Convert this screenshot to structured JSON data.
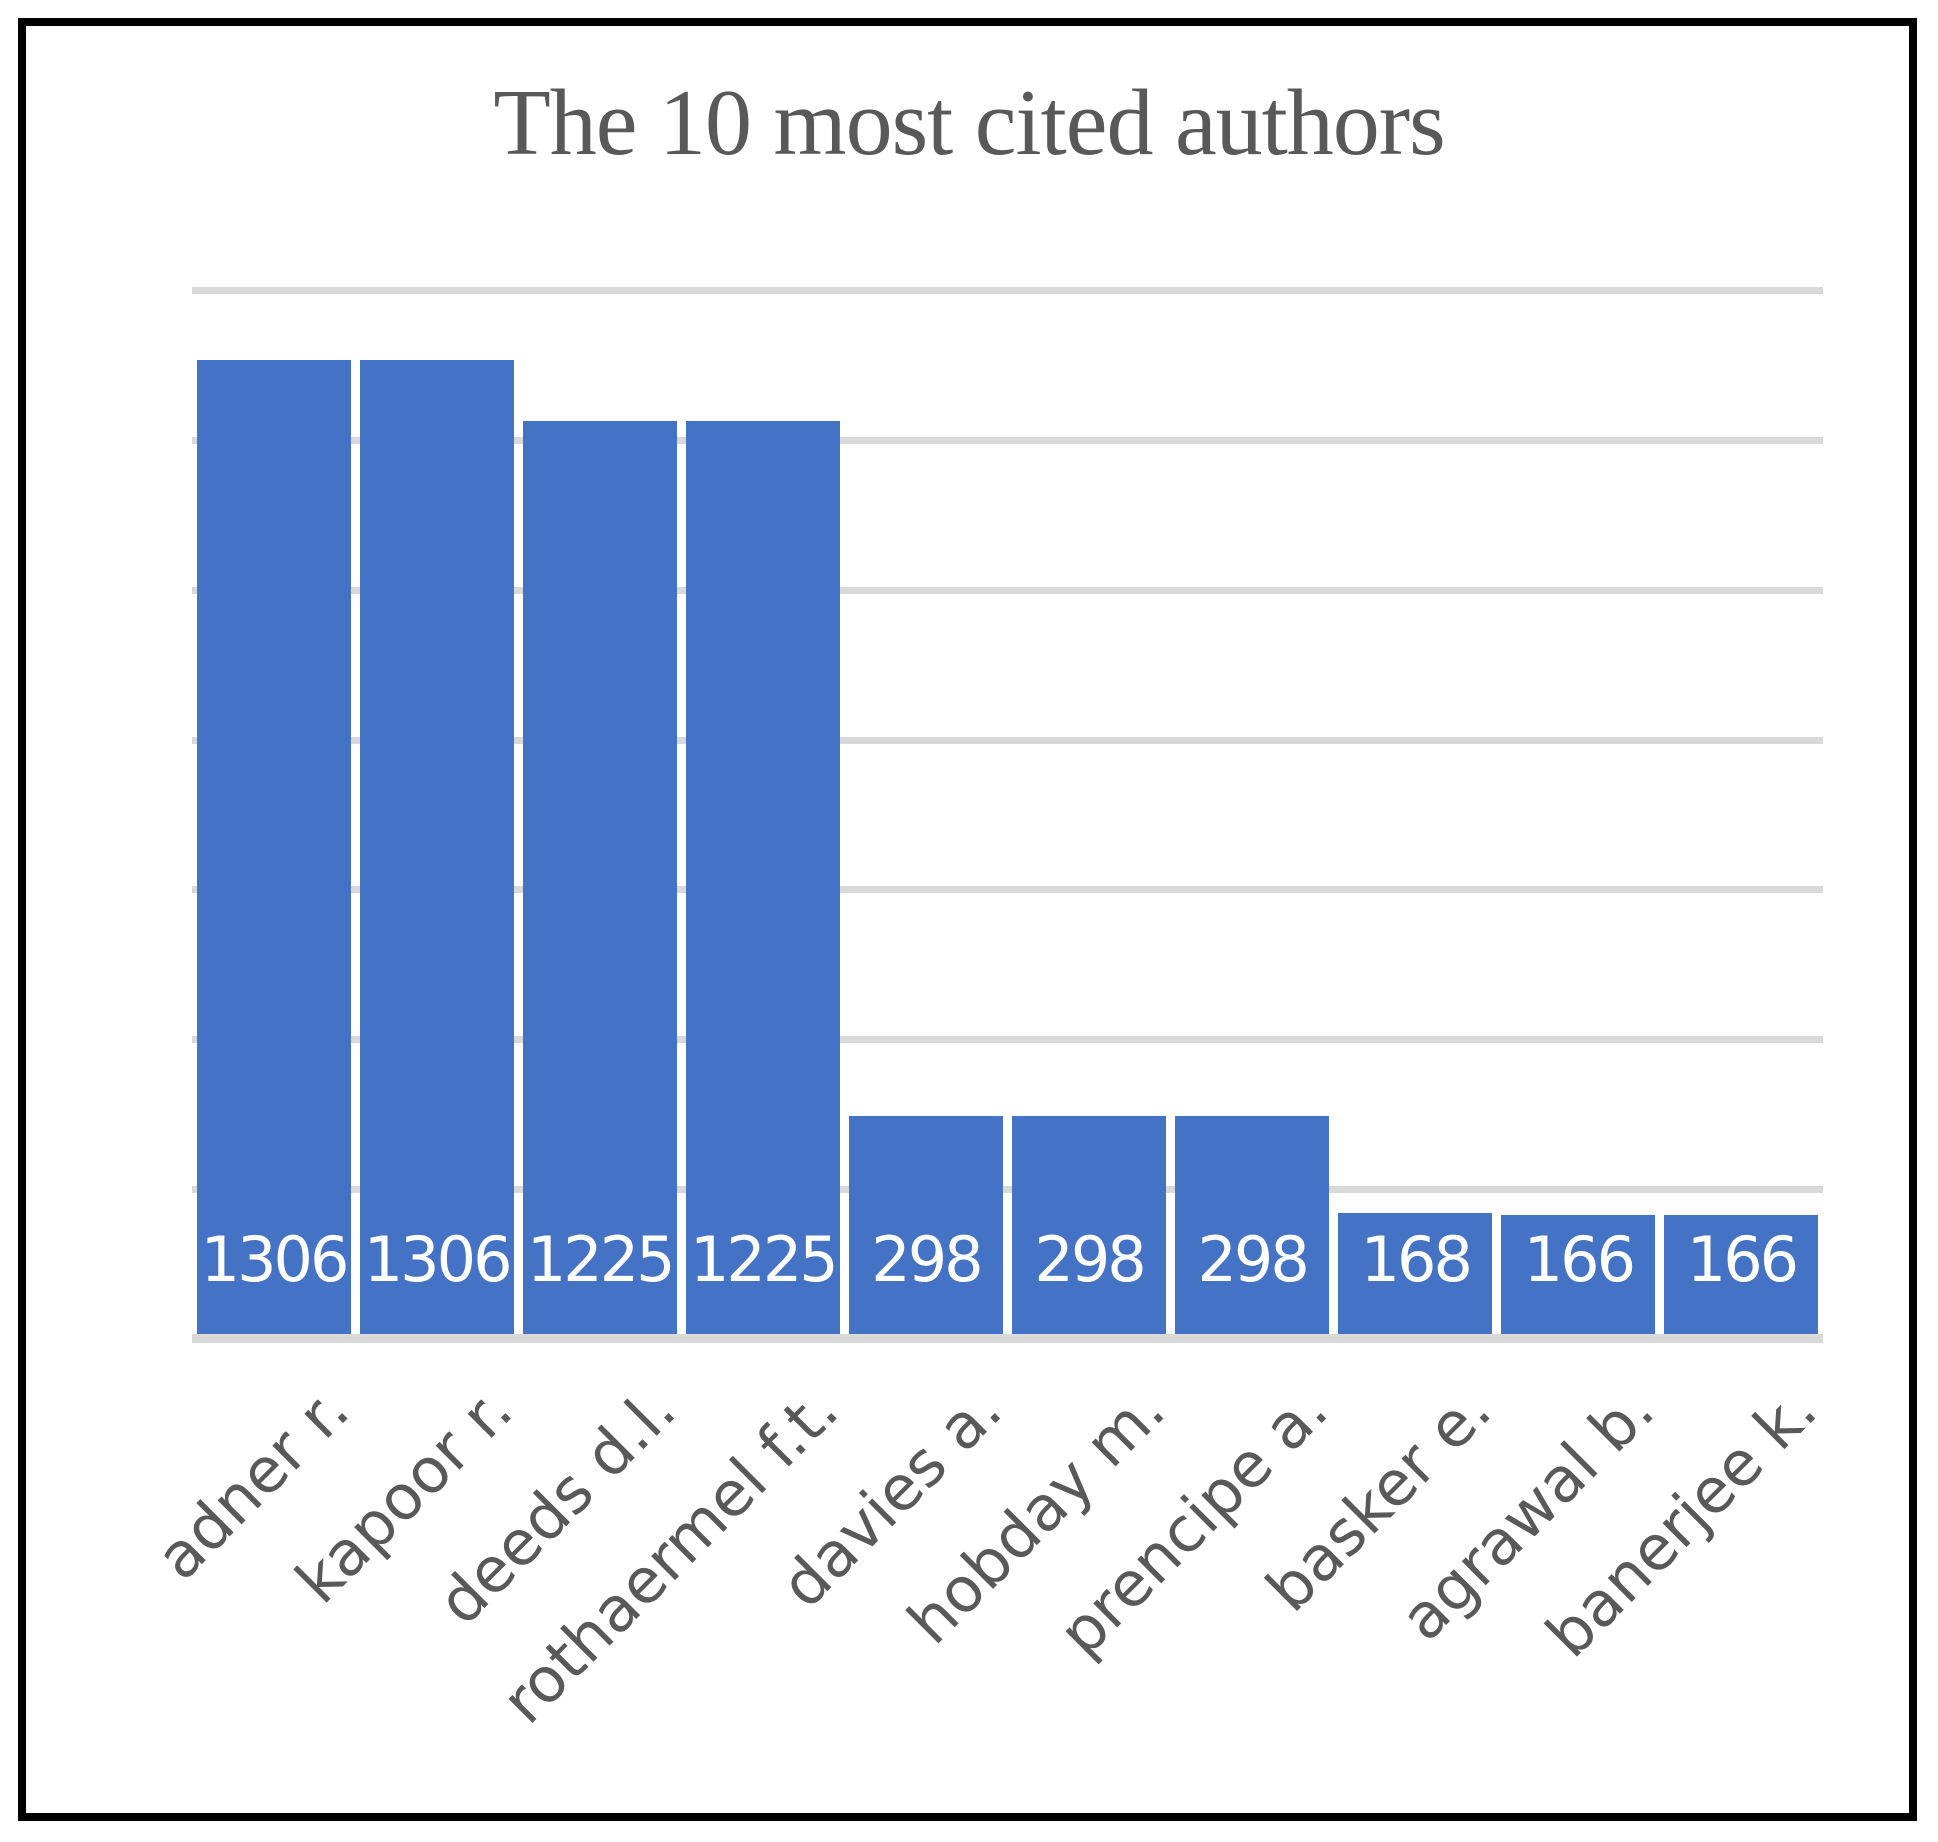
{
  "title": "The 10 most cited authors",
  "chart_data": {
    "type": "bar",
    "title": "The 10 most cited authors",
    "categories": [
      "adner r.",
      "kapoor r.",
      "deeds d.l.",
      "rothaermel f.t.",
      "davies a.",
      "hobday m.",
      "prencipe a.",
      "basker e.",
      "agrawal b.",
      "banerjee k."
    ],
    "values": [
      1306,
      1306,
      1225,
      1225,
      298,
      298,
      298,
      168,
      166,
      166
    ],
    "xlabel": "",
    "ylabel": "",
    "ylim": [
      0,
      1400
    ],
    "gridline_step": 200,
    "grid": true,
    "legend": false,
    "y_axis_labels_visible": false,
    "data_label_position": "inside-base",
    "category_label_rotation_deg": 45,
    "colors": {
      "bar": "#4472C4",
      "value_label": "#FFFFFF",
      "text": "#595959",
      "gridline": "#D9D9D9",
      "frame_border": "#000000",
      "background": "#FFFFFF"
    }
  }
}
